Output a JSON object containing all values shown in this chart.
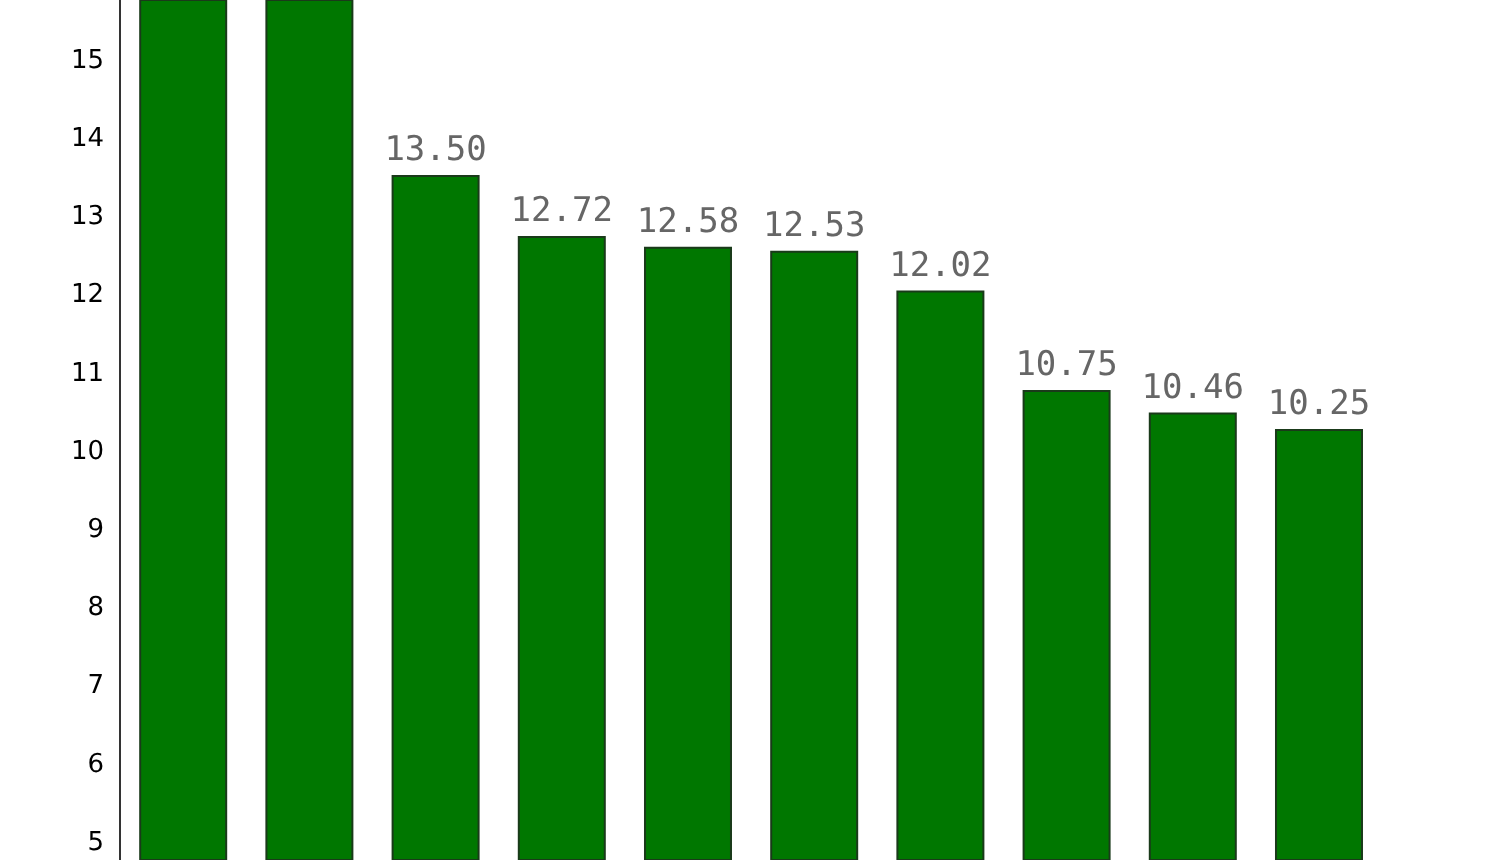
{
  "chart_data": {
    "type": "bar",
    "categories": [
      null,
      null,
      null,
      null,
      null,
      null,
      null,
      null,
      null,
      null
    ],
    "values": [
      15.75,
      15.75,
      13.5,
      12.72,
      12.58,
      12.53,
      12.02,
      10.75,
      10.46,
      10.25
    ],
    "value_labels": [
      null,
      null,
      "13.50",
      "12.72",
      "12.58",
      "12.53",
      "12.02",
      "10.75",
      "10.46",
      "10.25"
    ],
    "color": "#007700",
    "ylim": [
      4.75,
      15.75
    ],
    "yticks": [
      5,
      6,
      7,
      8,
      9,
      10,
      11,
      12,
      13,
      14,
      15
    ],
    "grid": false,
    "legend": false,
    "tick_labels": "y"
  }
}
